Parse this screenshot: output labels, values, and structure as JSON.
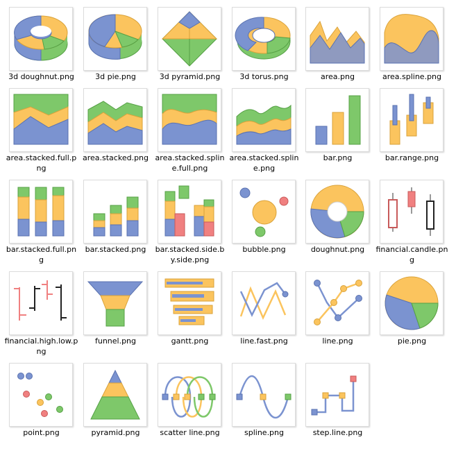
{
  "colors": {
    "blue": "#7b93d0",
    "orange": "#fbc45e",
    "green": "#7ec86a",
    "red": "#f08080"
  },
  "files": [
    {
      "label": "3d doughnut.png",
      "icon": "3d-doughnut-chart-icon"
    },
    {
      "label": "3d pie.png",
      "icon": "3d-pie-chart-icon"
    },
    {
      "label": "3d pyramid.png",
      "icon": "3d-pyramid-chart-icon"
    },
    {
      "label": "3d torus.png",
      "icon": "3d-torus-chart-icon"
    },
    {
      "label": "area.png",
      "icon": "area-chart-icon"
    },
    {
      "label": "area.spline.png",
      "icon": "area-spline-chart-icon"
    },
    {
      "label": "area.stacked.full.png",
      "icon": "area-stacked-full-chart-icon"
    },
    {
      "label": "area.stacked.png",
      "icon": "area-stacked-chart-icon"
    },
    {
      "label": "area.stacked.spline.full.png",
      "icon": "area-stacked-spline-full-chart-icon"
    },
    {
      "label": "area.stacked.spline.png",
      "icon": "area-stacked-spline-chart-icon"
    },
    {
      "label": "bar.png",
      "icon": "bar-chart-icon"
    },
    {
      "label": "bar.range.png",
      "icon": "bar-range-chart-icon"
    },
    {
      "label": "bar.stacked.full.png",
      "icon": "bar-stacked-full-chart-icon"
    },
    {
      "label": "bar.stacked.png",
      "icon": "bar-stacked-chart-icon"
    },
    {
      "label": "bar.stacked.side.by.side.png",
      "icon": "bar-stacked-side-by-side-chart-icon"
    },
    {
      "label": "bubble.png",
      "icon": "bubble-chart-icon"
    },
    {
      "label": "doughnut.png",
      "icon": "doughnut-chart-icon"
    },
    {
      "label": "financial.candle.png",
      "icon": "financial-candle-chart-icon"
    },
    {
      "label": "financial.high.low.png",
      "icon": "financial-high-low-chart-icon"
    },
    {
      "label": "funnel.png",
      "icon": "funnel-chart-icon"
    },
    {
      "label": "gantt.png",
      "icon": "gantt-chart-icon"
    },
    {
      "label": "line.fast.png",
      "icon": "line-fast-chart-icon"
    },
    {
      "label": "line.png",
      "icon": "line-chart-icon"
    },
    {
      "label": "pie.png",
      "icon": "pie-chart-icon"
    },
    {
      "label": "point.png",
      "icon": "point-chart-icon"
    },
    {
      "label": "pyramid.png",
      "icon": "pyramid-chart-icon"
    },
    {
      "label": "scatter line.png",
      "icon": "scatter-line-chart-icon"
    },
    {
      "label": "spline.png",
      "icon": "spline-chart-icon"
    },
    {
      "label": "step.line.png",
      "icon": "step-line-chart-icon"
    }
  ]
}
